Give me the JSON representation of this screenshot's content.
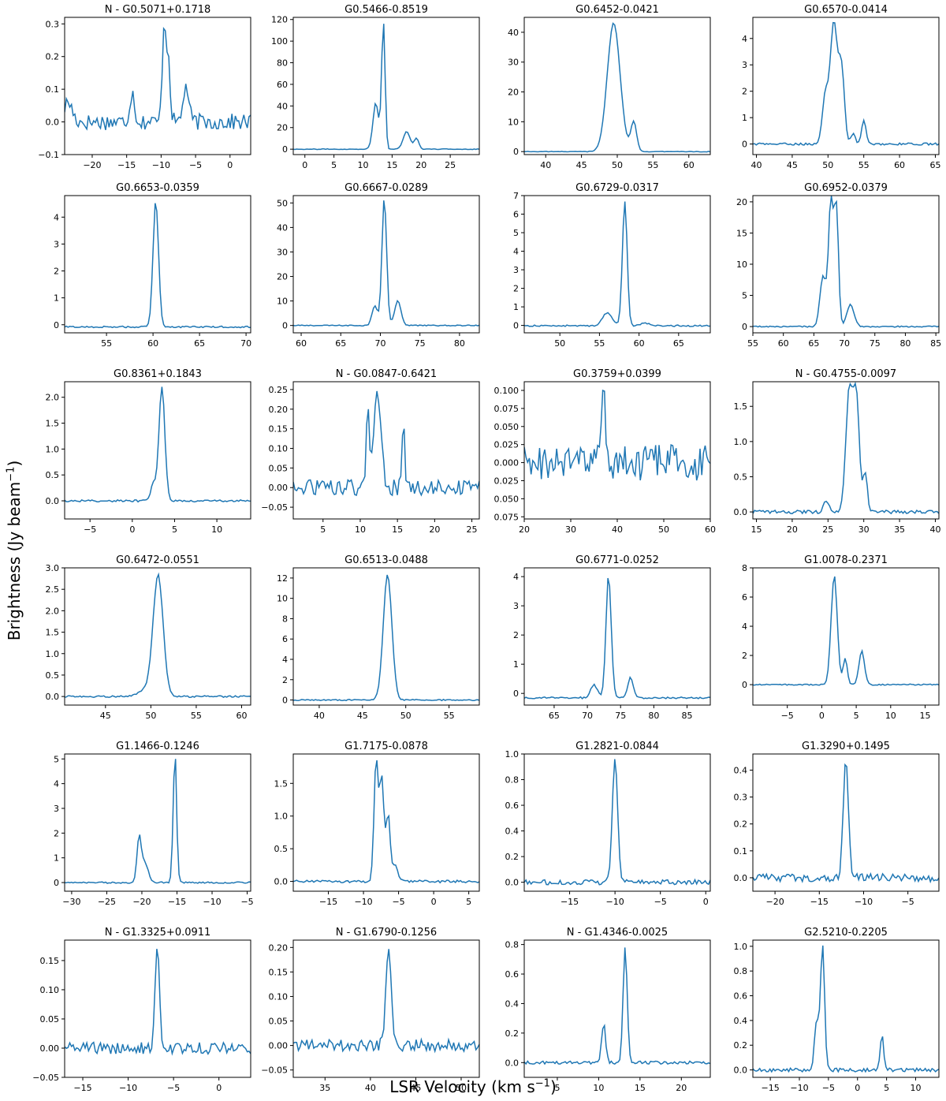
{
  "figure": {
    "ylabel_main": "Brightness (Jy beam",
    "ylabel_sup": "−1",
    "ylabel_end": ")",
    "xlabel_main": "LSR Velocity (km s",
    "xlabel_sup": "−1",
    "xlabel_end": ")"
  },
  "colors": {
    "line": "#1f77b4",
    "axis": "#000000"
  },
  "chart_data": [
    {
      "type": "line",
      "title": "N - G0.5071+0.1718",
      "xlim": [
        -24,
        3
      ],
      "ylim": [
        -0.1,
        0.32
      ],
      "xticks": [
        -20,
        -15,
        -10,
        -5,
        0
      ],
      "yticks": [
        -0.1,
        0.0,
        0.1,
        0.2,
        0.3
      ],
      "yfmt": 1,
      "noise": 0.025,
      "baseline": 0.0,
      "peaks": [
        [
          -9.6,
          0.28,
          0.25
        ],
        [
          -9.0,
          0.2,
          0.3
        ],
        [
          -14.2,
          0.09,
          0.35
        ],
        [
          -6.4,
          0.11,
          0.4
        ],
        [
          -23.5,
          0.06,
          0.6
        ]
      ]
    },
    {
      "type": "line",
      "title": "G0.5466-0.8519",
      "xlim": [
        -2,
        30
      ],
      "ylim": [
        -5,
        122
      ],
      "xticks": [
        0,
        5,
        10,
        15,
        20,
        25
      ],
      "yticks": [
        0,
        20,
        40,
        60,
        80,
        100,
        120
      ],
      "yfmt": 0,
      "noise": 0.3,
      "baseline": 0.0,
      "peaks": [
        [
          13.5,
          116,
          0.3
        ],
        [
          12.2,
          42,
          0.5
        ],
        [
          17.5,
          16,
          0.6
        ],
        [
          19.2,
          10,
          0.4
        ]
      ]
    },
    {
      "type": "line",
      "title": "G0.6452-0.0421",
      "xlim": [
        37,
        63
      ],
      "ylim": [
        -1,
        45
      ],
      "xticks": [
        40,
        45,
        50,
        55,
        60
      ],
      "yticks": [
        0,
        10,
        20,
        30,
        40
      ],
      "yfmt": 0,
      "noise": 0.1,
      "baseline": 0.0,
      "peaks": [
        [
          49.5,
          43,
          0.9
        ],
        [
          52.3,
          10,
          0.4
        ]
      ]
    },
    {
      "type": "line",
      "title": "G0.6570-0.0414",
      "xlim": [
        39.5,
        65.5
      ],
      "ylim": [
        -0.4,
        4.8
      ],
      "xticks": [
        40,
        45,
        50,
        55,
        60,
        65
      ],
      "yticks": [
        0,
        1,
        2,
        3,
        4
      ],
      "yfmt": 0,
      "noise": 0.04,
      "baseline": 0.0,
      "peaks": [
        [
          50.8,
          4.6,
          0.5
        ],
        [
          51.9,
          2.8,
          0.4
        ],
        [
          49.6,
          1.8,
          0.4
        ],
        [
          55.0,
          0.9,
          0.3
        ],
        [
          53.5,
          0.4,
          0.3
        ]
      ]
    },
    {
      "type": "line",
      "title": "G0.6653-0.0359",
      "xlim": [
        50.5,
        70.5
      ],
      "ylim": [
        -0.3,
        4.8
      ],
      "xticks": [
        55,
        60,
        65,
        70
      ],
      "yticks": [
        0,
        1,
        2,
        3,
        4
      ],
      "yfmt": 0,
      "noise": 0.03,
      "baseline": -0.08,
      "peaks": [
        [
          60.3,
          4.6,
          0.3
        ]
      ]
    },
    {
      "type": "line",
      "title": "G0.6667-0.0289",
      "xlim": [
        59,
        82.5
      ],
      "ylim": [
        -3,
        53
      ],
      "xticks": [
        60,
        65,
        70,
        75,
        80
      ],
      "yticks": [
        0,
        10,
        20,
        30,
        40,
        50
      ],
      "yfmt": 0,
      "noise": 0.2,
      "baseline": 0.0,
      "peaks": [
        [
          70.5,
          51,
          0.3
        ],
        [
          69.3,
          8,
          0.35
        ],
        [
          72.2,
          10,
          0.4
        ]
      ]
    },
    {
      "type": "line",
      "title": "G0.6729-0.0317",
      "xlim": [
        45.5,
        69
      ],
      "ylim": [
        -0.4,
        7
      ],
      "xticks": [
        50,
        55,
        60,
        65
      ],
      "yticks": [
        0,
        1,
        2,
        3,
        4,
        5,
        6,
        7
      ],
      "yfmt": 0,
      "noise": 0.04,
      "baseline": -0.02,
      "peaks": [
        [
          58.2,
          6.7,
          0.3
        ],
        [
          56.0,
          0.7,
          0.6
        ],
        [
          60.8,
          0.15,
          0.5
        ]
      ]
    },
    {
      "type": "line",
      "title": "G0.6952-0.0379",
      "xlim": [
        55,
        85.5
      ],
      "ylim": [
        -1,
        21
      ],
      "xticks": [
        55,
        60,
        65,
        70,
        75,
        80,
        85
      ],
      "yticks": [
        0,
        5,
        10,
        15,
        20
      ],
      "yfmt": 0,
      "noise": 0.1,
      "baseline": 0.0,
      "peaks": [
        [
          67.8,
          20,
          0.4
        ],
        [
          68.7,
          18.5,
          0.35
        ],
        [
          66.5,
          8,
          0.5
        ],
        [
          71.0,
          3.5,
          0.6
        ]
      ]
    },
    {
      "type": "line",
      "title": "G0.8361+0.1843",
      "xlim": [
        -8,
        14
      ],
      "ylim": [
        -0.35,
        2.3
      ],
      "xticks": [
        -5,
        0,
        5,
        10
      ],
      "yticks": [
        0.0,
        0.5,
        1.0,
        1.5,
        2.0
      ],
      "yfmt": 1,
      "noise": 0.02,
      "baseline": 0.0,
      "peaks": [
        [
          3.5,
          2.2,
          0.35
        ],
        [
          2.5,
          0.35,
          0.3
        ]
      ]
    },
    {
      "type": "line",
      "title": "N - G0.0847-0.6421",
      "xlim": [
        1,
        26
      ],
      "ylim": [
        -0.08,
        0.27
      ],
      "xticks": [
        5,
        10,
        15,
        20,
        25
      ],
      "yticks": [
        -0.05,
        0.0,
        0.05,
        0.1,
        0.15,
        0.2,
        0.25
      ],
      "yfmt": 2,
      "noise": 0.02,
      "baseline": 0.0,
      "peaks": [
        [
          12.3,
          0.24,
          0.5
        ],
        [
          11.0,
          0.2,
          0.2
        ],
        [
          15.8,
          0.15,
          0.2
        ]
      ]
    },
    {
      "type": "line",
      "title": "G0.3759+0.0399",
      "xlim": [
        20,
        60
      ],
      "ylim": [
        -0.078,
        0.112
      ],
      "xticks": [
        20,
        30,
        40,
        50,
        60
      ],
      "yticks": [
        -0.075,
        -0.05,
        -0.025,
        0.0,
        0.025,
        0.05,
        0.075,
        0.1
      ],
      "ytickLabels": [
        "0.075",
        "0.050",
        "0.025",
        "0.000",
        "0.025",
        "0.050",
        "0.075",
        "0.100"
      ],
      "yfmt": 3,
      "noise": 0.025,
      "baseline": 0.0,
      "peaks": [
        [
          37.0,
          0.1,
          0.4
        ]
      ]
    },
    {
      "type": "line",
      "title": "N - G0.4755-0.0097",
      "xlim": [
        14.5,
        40.5
      ],
      "ylim": [
        -0.1,
        1.85
      ],
      "xticks": [
        15,
        20,
        25,
        30,
        35,
        40
      ],
      "yticks": [
        0.0,
        0.5,
        1.0,
        1.5
      ],
      "yfmt": 1,
      "noise": 0.025,
      "baseline": 0.0,
      "peaks": [
        [
          28.0,
          1.75,
          0.5
        ],
        [
          29.0,
          1.5,
          0.4
        ],
        [
          30.2,
          0.55,
          0.3
        ],
        [
          24.8,
          0.15,
          0.4
        ]
      ]
    },
    {
      "type": "line",
      "title": "G0.6472-0.0551",
      "xlim": [
        40.5,
        61
      ],
      "ylim": [
        -0.2,
        3.0
      ],
      "xticks": [
        45,
        50,
        55,
        60
      ],
      "yticks": [
        0.0,
        0.5,
        1.0,
        1.5,
        2.0,
        2.5,
        3.0
      ],
      "yfmt": 1,
      "noise": 0.02,
      "baseline": 0.0,
      "peaks": [
        [
          50.8,
          2.8,
          0.55
        ],
        [
          49.5,
          0.15,
          0.8
        ]
      ]
    },
    {
      "type": "line",
      "title": "G0.6513-0.0488",
      "xlim": [
        37,
        58.5
      ],
      "ylim": [
        -0.5,
        13
      ],
      "xticks": [
        40,
        45,
        50,
        55
      ],
      "yticks": [
        0,
        2,
        4,
        6,
        8,
        10,
        12
      ],
      "yfmt": 0,
      "noise": 0.06,
      "baseline": 0.0,
      "peaks": [
        [
          47.9,
          12.3,
          0.5
        ]
      ]
    },
    {
      "type": "line",
      "title": "G0.6771-0.0252",
      "xlim": [
        60.5,
        88.5
      ],
      "ylim": [
        -0.4,
        4.3
      ],
      "xticks": [
        65,
        70,
        75,
        80,
        85
      ],
      "yticks": [
        0,
        1,
        2,
        3,
        4
      ],
      "yfmt": 0,
      "noise": 0.03,
      "baseline": -0.15,
      "peaks": [
        [
          73.2,
          4.1,
          0.4
        ],
        [
          71.0,
          0.45,
          0.5
        ],
        [
          76.5,
          0.7,
          0.4
        ]
      ]
    },
    {
      "type": "line",
      "title": "G1.0078-0.2371",
      "xlim": [
        -10,
        17
      ],
      "ylim": [
        -1.4,
        8
      ],
      "xticks": [
        -5,
        0,
        5,
        10,
        15
      ],
      "yticks": [
        0,
        2,
        4,
        6,
        8
      ],
      "yfmt": 0,
      "noise": 0.04,
      "baseline": 0.0,
      "peaks": [
        [
          1.8,
          7.4,
          0.45
        ],
        [
          5.8,
          2.3,
          0.4
        ],
        [
          3.4,
          1.8,
          0.3
        ]
      ]
    },
    {
      "type": "line",
      "title": "G1.1466-0.1246",
      "xlim": [
        -31,
        -4.5
      ],
      "ylim": [
        -0.35,
        5.2
      ],
      "xticks": [
        -30,
        -25,
        -20,
        -15,
        -10,
        -5
      ],
      "yticks": [
        0,
        1,
        2,
        3,
        4,
        5
      ],
      "yfmt": 0,
      "noise": 0.03,
      "baseline": 0.0,
      "peaks": [
        [
          -15.3,
          5.0,
          0.25
        ],
        [
          -20.4,
          1.7,
          0.3
        ],
        [
          -19.6,
          0.8,
          0.5
        ]
      ]
    },
    {
      "type": "line",
      "title": "G1.7175-0.0878",
      "xlim": [
        -20,
        6.5
      ],
      "ylim": [
        -0.15,
        1.95
      ],
      "xticks": [
        -15,
        -10,
        -5,
        0,
        5
      ],
      "yticks": [
        0.0,
        0.5,
        1.0,
        1.5
      ],
      "yfmt": 1,
      "noise": 0.02,
      "baseline": 0.0,
      "peaks": [
        [
          -8.2,
          1.85,
          0.3
        ],
        [
          -7.4,
          1.6,
          0.3
        ],
        [
          -6.5,
          1.0,
          0.3
        ],
        [
          -5.5,
          0.25,
          0.4
        ]
      ]
    },
    {
      "type": "line",
      "title": "G1.2821-0.0844",
      "xlim": [
        -20,
        0.5
      ],
      "ylim": [
        -0.07,
        1.0
      ],
      "xticks": [
        -15,
        -10,
        -5,
        0
      ],
      "yticks": [
        0.0,
        0.2,
        0.4,
        0.6,
        0.8,
        1.0
      ],
      "yfmt": 1,
      "noise": 0.02,
      "baseline": 0.0,
      "peaks": [
        [
          -10.0,
          0.95,
          0.3
        ]
      ]
    },
    {
      "type": "line",
      "title": "G1.3290+0.1495",
      "xlim": [
        -22.5,
        -1.5
      ],
      "ylim": [
        -0.05,
        0.46
      ],
      "xticks": [
        -20,
        -15,
        -10,
        -5
      ],
      "yticks": [
        0.0,
        0.1,
        0.2,
        0.3,
        0.4
      ],
      "yfmt": 1,
      "noise": 0.015,
      "baseline": 0.0,
      "peaks": [
        [
          -12.0,
          0.42,
          0.3
        ]
      ]
    },
    {
      "type": "line",
      "title": "N - G1.3325+0.0911",
      "xlim": [
        -17,
        3.5
      ],
      "ylim": [
        -0.05,
        0.185
      ],
      "xticks": [
        -15,
        -10,
        -5,
        0
      ],
      "yticks": [
        -0.05,
        0.0,
        0.05,
        0.1,
        0.15
      ],
      "yfmt": 2,
      "noise": 0.01,
      "baseline": 0.0,
      "peaks": [
        [
          -6.8,
          0.17,
          0.25
        ]
      ]
    },
    {
      "type": "line",
      "title": "N - G1.6790-0.1256",
      "xlim": [
        31.5,
        52
      ],
      "ylim": [
        -0.065,
        0.215
      ],
      "xticks": [
        35,
        40,
        45,
        50
      ],
      "yticks": [
        -0.05,
        0.0,
        0.05,
        0.1,
        0.15,
        0.2
      ],
      "yfmt": 2,
      "noise": 0.012,
      "baseline": 0.0,
      "peaks": [
        [
          42.0,
          0.19,
          0.3
        ]
      ]
    },
    {
      "type": "line",
      "title": "N - G1.4346-0.0025",
      "xlim": [
        1,
        23.5
      ],
      "ylim": [
        -0.1,
        0.83
      ],
      "xticks": [
        5,
        10,
        15,
        20
      ],
      "yticks": [
        0.0,
        0.2,
        0.4,
        0.6,
        0.8
      ],
      "yfmt": 1,
      "noise": 0.01,
      "baseline": 0.0,
      "peaks": [
        [
          13.2,
          0.78,
          0.25
        ],
        [
          10.6,
          0.25,
          0.25
        ]
      ]
    },
    {
      "type": "line",
      "title": "G2.5210-0.2205",
      "xlim": [
        -18,
        14
      ],
      "ylim": [
        -0.06,
        1.05
      ],
      "xticks": [
        -15,
        -10,
        -5,
        0,
        5,
        10
      ],
      "yticks": [
        0.0,
        0.2,
        0.4,
        0.6,
        0.8,
        1.0
      ],
      "yfmt": 1,
      "noise": 0.015,
      "baseline": 0.0,
      "peaks": [
        [
          -6.0,
          1.0,
          0.35
        ],
        [
          -7.0,
          0.38,
          0.4
        ],
        [
          4.2,
          0.27,
          0.3
        ]
      ]
    }
  ]
}
